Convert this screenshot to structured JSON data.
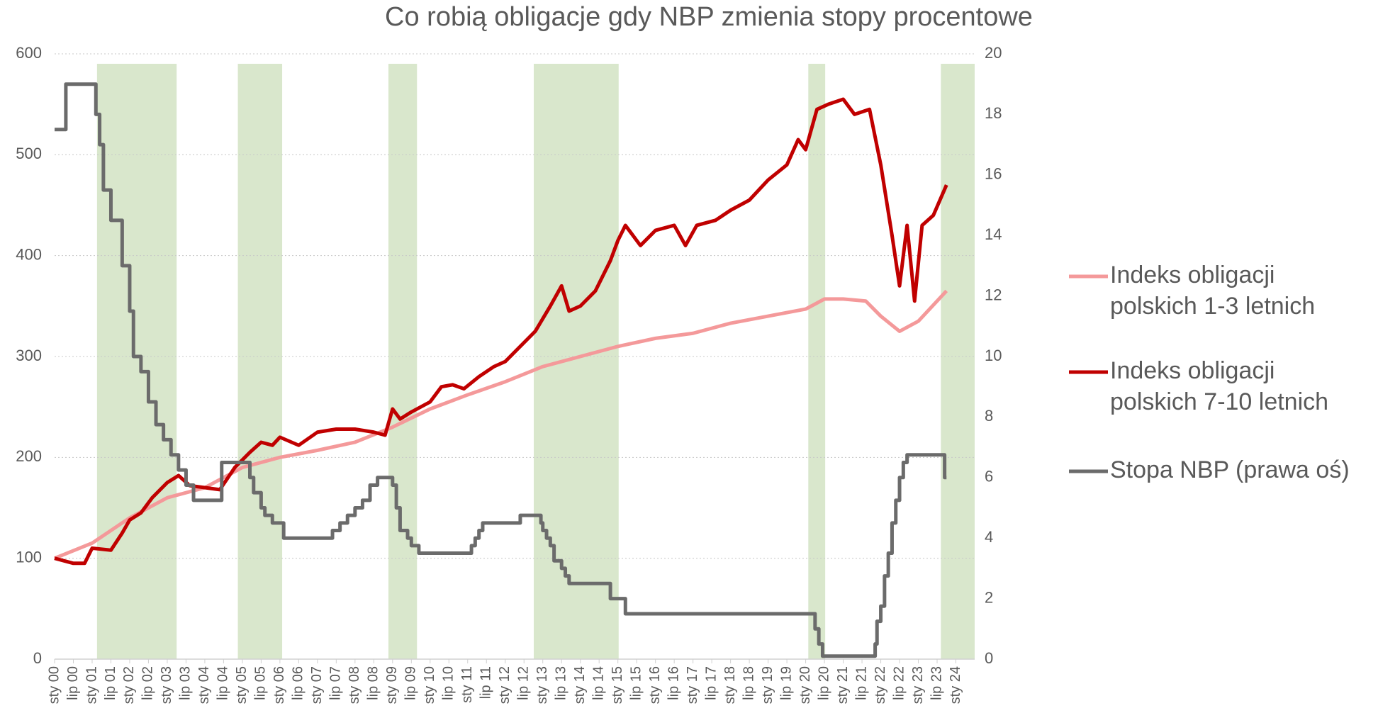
{
  "chart_data": {
    "type": "line",
    "title": "Co robią obligacje gdy NBP zmienia stopy procentowe",
    "xlim": [
      2000,
      2024.5
    ],
    "xticks": [
      {
        "value": 2000,
        "label": "sty 00"
      },
      {
        "value": 2000.5,
        "label": "lip 00"
      },
      {
        "value": 2001,
        "label": "sty 01"
      },
      {
        "value": 2001.5,
        "label": "lip 01"
      },
      {
        "value": 2002,
        "label": "sty 02"
      },
      {
        "value": 2002.5,
        "label": "lip 02"
      },
      {
        "value": 2003,
        "label": "sty 03"
      },
      {
        "value": 2003.5,
        "label": "lip 03"
      },
      {
        "value": 2004,
        "label": "sty 04"
      },
      {
        "value": 2004.5,
        "label": "lip 04"
      },
      {
        "value": 2005,
        "label": "sty 05"
      },
      {
        "value": 2005.5,
        "label": "lip 05"
      },
      {
        "value": 2006,
        "label": "sty 06"
      },
      {
        "value": 2006.5,
        "label": "lip 06"
      },
      {
        "value": 2007,
        "label": "sty 07"
      },
      {
        "value": 2007.5,
        "label": "lip 07"
      },
      {
        "value": 2008,
        "label": "sty 08"
      },
      {
        "value": 2008.5,
        "label": "lip 08"
      },
      {
        "value": 2009,
        "label": "sty 09"
      },
      {
        "value": 2009.5,
        "label": "lip 09"
      },
      {
        "value": 2010,
        "label": "sty 10"
      },
      {
        "value": 2010.5,
        "label": "lip 10"
      },
      {
        "value": 2011,
        "label": "sty 11"
      },
      {
        "value": 2011.5,
        "label": "lip 11"
      },
      {
        "value": 2012,
        "label": "sty 12"
      },
      {
        "value": 2012.5,
        "label": "lip 12"
      },
      {
        "value": 2013,
        "label": "sty 13"
      },
      {
        "value": 2013.5,
        "label": "lip 13"
      },
      {
        "value": 2014,
        "label": "sty 14"
      },
      {
        "value": 2014.5,
        "label": "lip 14"
      },
      {
        "value": 2015,
        "label": "sty 15"
      },
      {
        "value": 2015.5,
        "label": "lip 15"
      },
      {
        "value": 2016,
        "label": "sty 16"
      },
      {
        "value": 2016.5,
        "label": "lip 16"
      },
      {
        "value": 2017,
        "label": "sty 17"
      },
      {
        "value": 2017.5,
        "label": "lip 17"
      },
      {
        "value": 2018,
        "label": "sty 18"
      },
      {
        "value": 2018.5,
        "label": "lip 18"
      },
      {
        "value": 2019,
        "label": "sty 19"
      },
      {
        "value": 2019.5,
        "label": "lip 19"
      },
      {
        "value": 2020,
        "label": "sty 20"
      },
      {
        "value": 2020.5,
        "label": "lip 20"
      },
      {
        "value": 2021,
        "label": "sty 21"
      },
      {
        "value": 2021.5,
        "label": "lip 21"
      },
      {
        "value": 2022,
        "label": "sty 22"
      },
      {
        "value": 2022.5,
        "label": "lip 22"
      },
      {
        "value": 2023,
        "label": "sty 23"
      },
      {
        "value": 2023.5,
        "label": "lip 23"
      },
      {
        "value": 2024,
        "label": "sty 24"
      }
    ],
    "ylim": [
      0,
      600
    ],
    "yticks": [
      0,
      100,
      200,
      300,
      400,
      500,
      600
    ],
    "y2lim": [
      0,
      20
    ],
    "y2ticks": [
      0,
      2,
      4,
      6,
      8,
      10,
      12,
      14,
      16,
      18,
      20
    ],
    "grid": true,
    "legend": "right",
    "shaded_periods": {
      "color": "#d9e7cc",
      "ranges": [
        [
          2001.13,
          2003.25
        ],
        [
          2004.88,
          2006.06
        ],
        [
          2008.89,
          2009.65
        ],
        [
          2012.76,
          2015.02
        ],
        [
          2020.07,
          2020.52
        ],
        [
          2023.6,
          2024.5
        ]
      ]
    },
    "series": [
      {
        "name": "Indeks obligacji polskich 1-3 letnich",
        "color": "#f4999a",
        "x": [
          2000,
          2001,
          2002,
          2003,
          2004,
          2005,
          2006,
          2007,
          2008,
          2009,
          2010,
          2011,
          2012,
          2013,
          2014,
          2015,
          2016,
          2017,
          2018,
          2019,
          2020,
          2020.5,
          2021,
          2021.6,
          2022,
          2022.5,
          2023,
          2023.75
        ],
        "values": [
          100,
          115,
          140,
          160,
          170,
          190,
          200,
          207,
          215,
          230,
          248,
          262,
          275,
          290,
          300,
          310,
          318,
          323,
          333,
          340,
          347,
          357,
          357,
          355,
          340,
          325,
          335,
          365
        ]
      },
      {
        "name": "Indeks obligacji polskich 7-10 letnich",
        "color": "#c00000",
        "x": [
          2000,
          2000.5,
          2000.8,
          2001,
          2001.5,
          2001.8,
          2002,
          2002.3,
          2002.6,
          2003,
          2003.3,
          2003.6,
          2004,
          2004.4,
          2004.8,
          2005.2,
          2005.5,
          2005.8,
          2006,
          2006.5,
          2007,
          2007.5,
          2008,
          2008.5,
          2008.8,
          2009,
          2009.2,
          2009.5,
          2010,
          2010.3,
          2010.6,
          2010.9,
          2011.3,
          2011.7,
          2012,
          2012.4,
          2012.8,
          2013.2,
          2013.5,
          2013.7,
          2014,
          2014.4,
          2014.8,
          2015,
          2015.2,
          2015.6,
          2016,
          2016.5,
          2016.8,
          2017.1,
          2017.6,
          2018,
          2018.5,
          2019,
          2019.5,
          2019.8,
          2020,
          2020.3,
          2020.6,
          2021,
          2021.3,
          2021.7,
          2022,
          2022.3,
          2022.5,
          2022.7,
          2022.9,
          2023.1,
          2023.4,
          2023.75
        ],
        "values": [
          100,
          95,
          95,
          110,
          108,
          125,
          138,
          145,
          160,
          175,
          182,
          172,
          170,
          168,
          190,
          205,
          215,
          212,
          220,
          212,
          225,
          228,
          228,
          225,
          222,
          248,
          238,
          245,
          255,
          270,
          272,
          268,
          280,
          290,
          295,
          310,
          325,
          350,
          370,
          345,
          350,
          365,
          395,
          415,
          430,
          410,
          425,
          430,
          410,
          430,
          435,
          445,
          455,
          475,
          490,
          515,
          505,
          545,
          550,
          555,
          540,
          545,
          490,
          420,
          370,
          430,
          355,
          430,
          440,
          470
        ]
      },
      {
        "name": "Stopa NBP (prawa oś)",
        "color": "#6b6b6b",
        "axis": "y2",
        "step": true,
        "x": [
          2000,
          2000.3,
          2001.1,
          2001.2,
          2001.3,
          2001.5,
          2001.8,
          2002,
          2002.1,
          2002.3,
          2002.5,
          2002.7,
          2002.9,
          2003.1,
          2003.3,
          2003.5,
          2003.7,
          2004,
          2004.45,
          2005,
          2005.2,
          2005.3,
          2005.5,
          2005.6,
          2005.8,
          2006.1,
          2007.3,
          2007.4,
          2007.6,
          2007.8,
          2008,
          2008.2,
          2008.4,
          2008.6,
          2009,
          2009.1,
          2009.2,
          2009.4,
          2009.5,
          2009.7,
          2011,
          2011.1,
          2011.2,
          2011.3,
          2011.4,
          2012.3,
          2012.4,
          2012.95,
          2013,
          2013.1,
          2013.2,
          2013.3,
          2013.5,
          2013.6,
          2013.7,
          2014.8,
          2015.2,
          2020.25,
          2020.35,
          2020.45,
          2021.85,
          2021.9,
          2022,
          2022.1,
          2022.2,
          2022.3,
          2022.4,
          2022.5,
          2022.6,
          2022.7,
          2023.7,
          2023.75
        ],
        "values": [
          17.5,
          19,
          18,
          17,
          15.5,
          14.5,
          13,
          11.5,
          10,
          9.5,
          8.5,
          7.75,
          7.25,
          6.75,
          6.25,
          5.75,
          5.25,
          5.25,
          6.5,
          6.5,
          6,
          5.5,
          5,
          4.75,
          4.5,
          4,
          4,
          4.25,
          4.5,
          4.75,
          5,
          5.25,
          5.75,
          6,
          5.75,
          5,
          4.25,
          4,
          3.75,
          3.5,
          3.5,
          3.75,
          4,
          4.25,
          4.5,
          4.5,
          4.75,
          4.5,
          4.25,
          4,
          3.75,
          3.25,
          3,
          2.75,
          2.5,
          2,
          1.5,
          1,
          0.5,
          0.1,
          0.5,
          1.25,
          1.75,
          2.75,
          3.5,
          4.5,
          5.25,
          6,
          6.5,
          6.75,
          6,
          6
        ]
      }
    ]
  }
}
